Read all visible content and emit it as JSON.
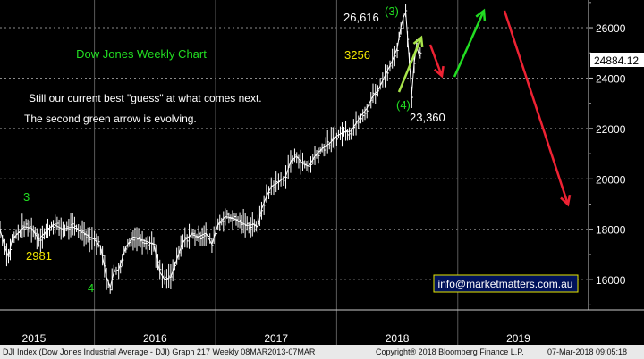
{
  "chart_data": {
    "type": "line",
    "title": "Dow Jones Weekly Chart",
    "xlabel": "",
    "ylabel": "",
    "x_ticks": [
      "2015",
      "2016",
      "2017",
      "2018",
      "2019"
    ],
    "y_ticks": [
      16000,
      18000,
      20000,
      22000,
      24000,
      26000
    ],
    "ylim": [
      14800,
      27100
    ],
    "xlim": [
      2014.72,
      2019.58
    ],
    "grid": true,
    "last_price_label": "24884.12",
    "series": [
      {
        "values": [
          [
            2014.72,
            18000
          ],
          [
            2014.76,
            17300
          ],
          [
            2014.79,
            16900
          ],
          [
            2014.82,
            17600
          ],
          [
            2014.87,
            17850
          ],
          [
            2014.92,
            18100
          ],
          [
            2014.98,
            18050
          ],
          [
            2015.04,
            17600
          ],
          [
            2015.1,
            17900
          ],
          [
            2015.16,
            18200
          ],
          [
            2015.24,
            18000
          ],
          [
            2015.32,
            18100
          ],
          [
            2015.4,
            17900
          ],
          [
            2015.46,
            17700
          ],
          [
            2015.5,
            17600
          ],
          [
            2015.55,
            17300
          ],
          [
            2015.6,
            16100
          ],
          [
            2015.63,
            15700
          ],
          [
            2015.66,
            16300
          ],
          [
            2015.7,
            16400
          ],
          [
            2015.76,
            17300
          ],
          [
            2015.82,
            17700
          ],
          [
            2015.88,
            17600
          ],
          [
            2015.94,
            17500
          ],
          [
            2015.99,
            17400
          ],
          [
            2016.04,
            16300
          ],
          [
            2016.08,
            16000
          ],
          [
            2016.13,
            16100
          ],
          [
            2016.18,
            16800
          ],
          [
            2016.23,
            17500
          ],
          [
            2016.3,
            17800
          ],
          [
            2016.36,
            17700
          ],
          [
            2016.42,
            17850
          ],
          [
            2016.47,
            17400
          ],
          [
            2016.52,
            18200
          ],
          [
            2016.58,
            18500
          ],
          [
            2016.64,
            18450
          ],
          [
            2016.7,
            18300
          ],
          [
            2016.76,
            18150
          ],
          [
            2016.82,
            18200
          ],
          [
            2016.85,
            18100
          ],
          [
            2016.88,
            18800
          ],
          [
            2016.92,
            19300
          ],
          [
            2016.96,
            19700
          ],
          [
            2017.0,
            19800
          ],
          [
            2017.04,
            19950
          ],
          [
            2017.08,
            20100
          ],
          [
            2017.12,
            20700
          ],
          [
            2017.17,
            20900
          ],
          [
            2017.22,
            20600
          ],
          [
            2017.27,
            20500
          ],
          [
            2017.32,
            20900
          ],
          [
            2017.38,
            21200
          ],
          [
            2017.44,
            21400
          ],
          [
            2017.5,
            21700
          ],
          [
            2017.56,
            21850
          ],
          [
            2017.62,
            21900
          ],
          [
            2017.66,
            22200
          ],
          [
            2017.7,
            22500
          ],
          [
            2017.75,
            22800
          ],
          [
            2017.8,
            23300
          ],
          [
            2017.84,
            23500
          ],
          [
            2017.88,
            23900
          ],
          [
            2017.92,
            24300
          ],
          [
            2017.96,
            24700
          ],
          [
            2018.0,
            25200
          ],
          [
            2018.03,
            26000
          ],
          [
            2018.05,
            26400
          ],
          [
            2018.07,
            26616
          ],
          [
            2018.1,
            24700
          ],
          [
            2018.12,
            23360
          ],
          [
            2018.14,
            24600
          ],
          [
            2018.16,
            25300
          ],
          [
            2018.18,
            24900
          ],
          [
            2018.19,
            24884
          ]
        ]
      }
    ],
    "annotations": {
      "subtitle_line1": "Still our current best \"guess\" at what comes next.",
      "subtitle_line2": "The second green arrow is evolving.",
      "wave_3_label": "(3)",
      "wave_4_label": "(4)",
      "peak_value": "26,616",
      "trough_value": "23,360",
      "right_level": "3256",
      "left_level": "2981",
      "left_wave_3": "3",
      "left_wave_4": "4",
      "contact": "info@marketmatters.com.au"
    },
    "colors": {
      "background": "#000000",
      "price": "#ffffff",
      "green": "#22dd22",
      "red": "#ee2233",
      "yellow": "#f2e600",
      "yellowgreen": "#a8e44a",
      "grid": "#8a8a8a",
      "sep": "#5a5a5a",
      "contact_border": "#e8e800",
      "contact_bg": "#00125a"
    }
  },
  "footer": {
    "left": "DJI Index (Dow Jones Industrial Average - DJI) Graph 217  Weekly 08MAR2013-07MAR",
    "center": "Copyright® 2018 Bloomberg Finance L.P.",
    "right": "07-Mar-2018 09:05:18"
  }
}
